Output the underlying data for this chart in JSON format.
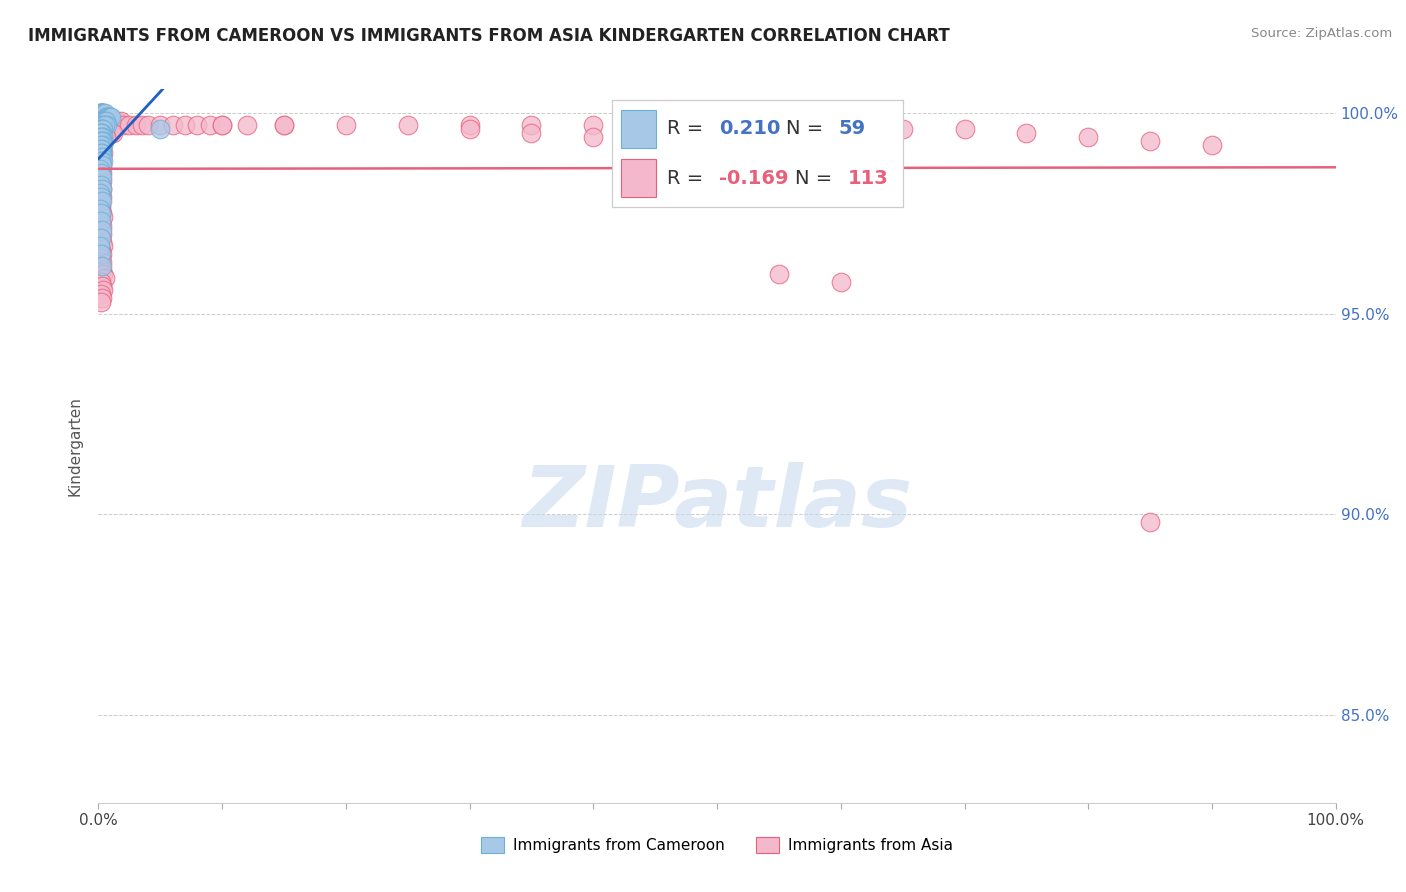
{
  "title": "IMMIGRANTS FROM CAMEROON VS IMMIGRANTS FROM ASIA KINDERGARTEN CORRELATION CHART",
  "source": "Source: ZipAtlas.com",
  "ylabel": "Kindergarten",
  "xlim": [
    0.0,
    1.0
  ],
  "ylim": [
    0.828,
    1.006
  ],
  "right_yticks": [
    0.85,
    0.9,
    0.95,
    1.0
  ],
  "right_yticklabels": [
    "85.0%",
    "90.0%",
    "95.0%",
    "100.0%"
  ],
  "xticks": [
    0.0,
    0.1,
    0.2,
    0.3,
    0.4,
    0.5,
    0.6,
    0.7,
    0.8,
    0.9,
    1.0
  ],
  "xticklabels_show": [
    "0.0%",
    "100.0%"
  ],
  "watermark": "ZIPatlas",
  "background_color": "#ffffff",
  "grid_color": "#cccccc",
  "cameron_color": "#a8c8e8",
  "cameron_edge": "#6baed6",
  "asia_color": "#f4b8cc",
  "asia_edge": "#e8607a",
  "cameron_trend_color": "#2060c0",
  "cameron_trend_dash_color": "#a0b8d8",
  "asia_trend_color": "#e8607a",
  "cam_x": [
    0.001,
    0.002,
    0.003,
    0.004,
    0.005,
    0.006,
    0.007,
    0.008,
    0.009,
    0.01,
    0.002,
    0.003,
    0.004,
    0.005,
    0.006,
    0.007,
    0.003,
    0.004,
    0.005,
    0.003,
    0.002,
    0.003,
    0.004,
    0.002,
    0.003,
    0.002,
    0.003,
    0.004,
    0.002,
    0.004,
    0.002,
    0.003,
    0.004,
    0.002,
    0.003,
    0.002,
    0.003,
    0.002,
    0.003,
    0.004,
    0.002,
    0.003,
    0.001,
    0.002,
    0.003,
    0.002,
    0.003,
    0.001,
    0.002,
    0.003,
    0.001,
    0.002,
    0.002,
    0.003,
    0.002,
    0.001,
    0.002,
    0.003,
    0.05
  ],
  "cam_y": [
    1.0,
    1.0,
    1.0,
    1.0,
    1.0,
    0.999,
    0.999,
    0.999,
    0.999,
    0.999,
    0.998,
    0.998,
    0.998,
    0.998,
    0.998,
    0.997,
    0.997,
    0.997,
    0.997,
    0.996,
    0.996,
    0.996,
    0.996,
    0.995,
    0.995,
    0.995,
    0.994,
    0.994,
    0.994,
    0.993,
    0.993,
    0.993,
    0.992,
    0.992,
    0.991,
    0.991,
    0.99,
    0.99,
    0.989,
    0.988,
    0.988,
    0.987,
    0.986,
    0.985,
    0.984,
    0.982,
    0.981,
    0.98,
    0.979,
    0.978,
    0.976,
    0.975,
    0.973,
    0.971,
    0.969,
    0.967,
    0.965,
    0.962,
    0.996
  ],
  "asia_x": [
    0.001,
    0.002,
    0.003,
    0.004,
    0.005,
    0.006,
    0.007,
    0.008,
    0.009,
    0.01,
    0.012,
    0.015,
    0.018,
    0.02,
    0.025,
    0.03,
    0.035,
    0.04,
    0.05,
    0.06,
    0.07,
    0.08,
    0.09,
    0.1,
    0.002,
    0.003,
    0.004,
    0.005,
    0.006,
    0.007,
    0.008,
    0.01,
    0.012,
    0.002,
    0.003,
    0.004,
    0.005,
    0.006,
    0.002,
    0.003,
    0.004,
    0.002,
    0.003,
    0.15,
    0.2,
    0.25,
    0.3,
    0.35,
    0.4,
    0.002,
    0.003,
    0.004,
    0.002,
    0.003,
    0.002,
    0.003,
    0.002,
    0.003,
    0.002,
    0.003,
    0.45,
    0.5,
    0.55,
    0.6,
    0.65,
    0.7,
    0.75,
    0.8,
    0.85,
    0.9,
    0.002,
    0.003,
    0.002,
    0.003,
    0.002,
    0.1,
    0.12,
    0.15,
    0.002,
    0.3,
    0.35,
    0.002,
    0.003,
    0.004,
    0.002,
    0.003,
    0.4,
    0.45,
    0.002,
    0.003,
    0.5,
    0.55,
    0.002,
    0.003,
    0.6,
    0.004,
    0.002,
    0.003,
    0.002,
    0.003,
    0.002,
    0.003,
    0.004,
    0.005,
    0.002,
    0.003,
    0.004,
    0.002,
    0.003,
    0.002,
    0.55,
    0.6,
    0.85
  ],
  "asia_y": [
    1.0,
    1.0,
    1.0,
    1.0,
    0.999,
    0.999,
    0.999,
    0.999,
    0.999,
    0.998,
    0.998,
    0.998,
    0.998,
    0.997,
    0.997,
    0.997,
    0.997,
    0.997,
    0.997,
    0.997,
    0.997,
    0.997,
    0.997,
    0.997,
    0.996,
    0.996,
    0.996,
    0.996,
    0.996,
    0.996,
    0.996,
    0.995,
    0.995,
    0.995,
    0.995,
    0.995,
    0.995,
    0.994,
    0.994,
    0.994,
    0.993,
    0.993,
    0.992,
    0.997,
    0.997,
    0.997,
    0.997,
    0.997,
    0.997,
    0.992,
    0.991,
    0.99,
    0.99,
    0.989,
    0.988,
    0.987,
    0.986,
    0.985,
    0.984,
    0.983,
    0.997,
    0.997,
    0.997,
    0.997,
    0.996,
    0.996,
    0.995,
    0.994,
    0.993,
    0.992,
    0.982,
    0.981,
    0.98,
    0.979,
    0.978,
    0.997,
    0.997,
    0.997,
    0.977,
    0.996,
    0.995,
    0.976,
    0.975,
    0.974,
    0.973,
    0.972,
    0.994,
    0.993,
    0.971,
    0.97,
    0.992,
    0.991,
    0.969,
    0.968,
    0.99,
    0.967,
    0.966,
    0.965,
    0.964,
    0.963,
    0.962,
    0.961,
    0.96,
    0.959,
    0.958,
    0.957,
    0.956,
    0.955,
    0.954,
    0.953,
    0.96,
    0.958,
    0.898
  ]
}
